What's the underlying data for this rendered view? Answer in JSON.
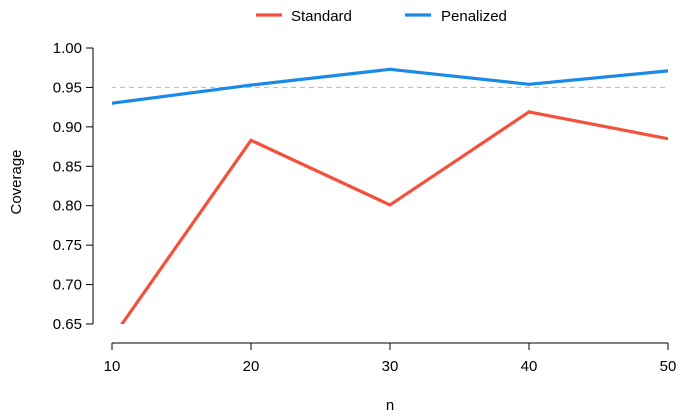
{
  "chart_data": {
    "type": "line",
    "title": "",
    "xlabel": "n",
    "ylabel": "Coverage",
    "x": [
      10,
      20,
      30,
      40,
      50
    ],
    "x_tick_labels": [
      "10",
      "20",
      "30",
      "40",
      "50"
    ],
    "y_tick_labels": [
      "0.65",
      "0.70",
      "0.75",
      "0.80",
      "0.85",
      "0.90",
      "0.95",
      "1.00"
    ],
    "xlim": [
      10,
      50
    ],
    "ylim": [
      0.65,
      1.0
    ],
    "grid": false,
    "legend_position": "top-center",
    "reference_line": {
      "y": 0.95,
      "style": "dashed",
      "color": "#b9c3c6"
    },
    "series": [
      {
        "name": "Standard",
        "color": "#f4513c",
        "values": [
          0.632,
          0.883,
          0.801,
          0.919,
          0.885
        ]
      },
      {
        "name": "Penalized",
        "color": "#1a8ae6",
        "values": [
          0.93,
          0.953,
          0.973,
          0.954,
          0.971
        ]
      }
    ]
  }
}
